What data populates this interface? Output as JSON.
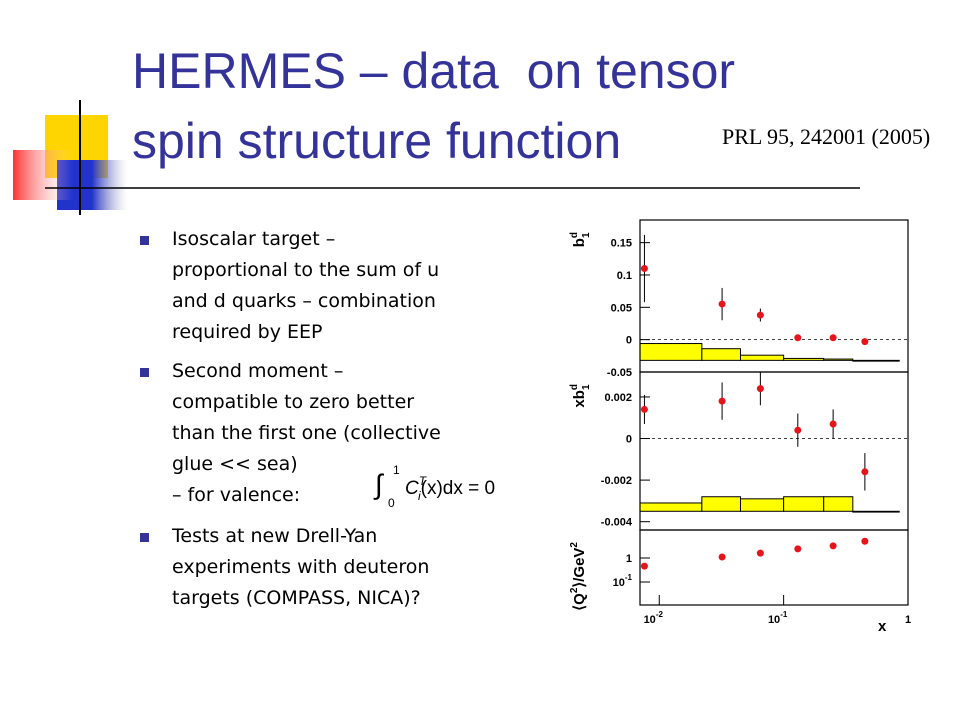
{
  "title": [
    "HERMES – data  on tensor",
    "spin structure function"
  ],
  "reference": "PRL 95, 242001 (2005)",
  "bullets": [
    {
      "lines": [
        "Isoscalar target –",
        "proportional to the sum of u",
        "and d quarks – combination",
        "required by EEP"
      ]
    },
    {
      "lines": [
        "Second moment –",
        "compatible to zero better",
        "than the first one (collective",
        "glue << sea)",
        "– for valence:"
      ]
    },
    {
      "lines": [
        "Tests at new Drell-Yan",
        "experiments with deuteron",
        "targets (COMPASS, NICA)?"
      ]
    }
  ],
  "formula": {
    "integral": "∫",
    "lower": "0",
    "upper": "1",
    "body": "C",
    "sub": "i",
    "sup": "T",
    "rest": "(x)dx = 0"
  },
  "chart_data": [
    {
      "type": "scatter",
      "ylabel": {
        "base": "b",
        "sup": "d",
        "sub": "1"
      },
      "x": [
        0.0076,
        0.032,
        0.065,
        0.13,
        0.25,
        0.45
      ],
      "values": [
        0.11,
        0.055,
        0.038,
        0.003,
        0.003,
        -0.003
      ],
      "errors": [
        0.052,
        0.025,
        0.01,
        0.003,
        0.003,
        0.003
      ],
      "color": "#e8141c",
      "xlim": [
        0.007,
        1
      ],
      "xlog": true,
      "ylim": [
        -0.05,
        0.185
      ],
      "yticks": [
        0.15,
        0.1,
        0.05,
        0,
        -0.05
      ],
      "zero_line": true,
      "band": {
        "bins": [
          0.007,
          0.022,
          0.045,
          0.1,
          0.21,
          0.36,
          0.85
        ],
        "base": -0.032,
        "values": [
          -0.006,
          -0.014,
          -0.024,
          -0.029,
          -0.03,
          -0.032
        ],
        "color": "#ffff00"
      }
    },
    {
      "type": "scatter",
      "ylabel": {
        "base": "xb",
        "sup": "d",
        "sub": "1"
      },
      "x": [
        0.0076,
        0.032,
        0.065,
        0.13,
        0.25,
        0.45
      ],
      "values": [
        0.0014,
        0.0018,
        0.0024,
        0.0004,
        0.0007,
        -0.0016
      ],
      "errors": [
        0.0007,
        0.0009,
        0.0008,
        0.0008,
        0.0007,
        0.0009
      ],
      "color": "#e8141c",
      "xlim": [
        0.007,
        1
      ],
      "xlog": true,
      "ylim": [
        -0.0044,
        0.0032
      ],
      "yticks": [
        0.002,
        0,
        -0.002,
        -0.004
      ],
      "zero_line": true,
      "band": {
        "bins": [
          0.007,
          0.022,
          0.045,
          0.1,
          0.21,
          0.36,
          0.85
        ],
        "base": -0.0035,
        "values": [
          -0.0031,
          -0.0028,
          -0.0029,
          -0.0028,
          -0.0028,
          -0.0035
        ],
        "color": "#ffff00"
      }
    },
    {
      "type": "scatter",
      "ylabel": {
        "base": "⟨Q",
        "sup": "2",
        "rest": "⟩/GeV",
        "sup2": "2"
      },
      "x": [
        0.0076,
        0.032,
        0.065,
        0.13,
        0.25,
        0.45
      ],
      "values": [
        0.46,
        1.1,
        1.6,
        2.4,
        3.2,
        5.0
      ],
      "color": "#e8141c",
      "xlim": [
        0.007,
        1
      ],
      "xlog": true,
      "ylim": [
        0.011,
        14.7
      ],
      "ylog": true,
      "yticks": [
        1,
        {
          "value": 0.1,
          "label": "10",
          "exponent": "-1"
        }
      ],
      "xticks": [
        {
          "value": 0.01,
          "label": "10",
          "exponent": "-2"
        },
        {
          "value": 0.1,
          "label": "10",
          "exponent": "-1"
        },
        1
      ],
      "xlabel": "x"
    }
  ]
}
